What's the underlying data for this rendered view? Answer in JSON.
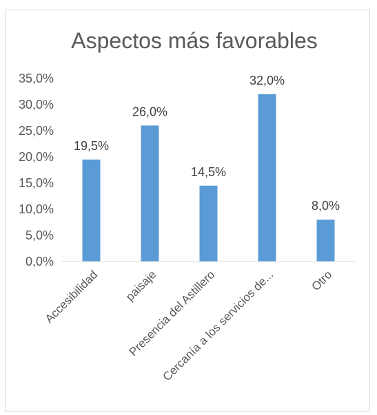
{
  "chart_data": {
    "type": "bar",
    "title": "Aspectos más favorables",
    "categories": [
      "Accesibilidad",
      "paisaje",
      "Presencia del Astillero",
      "Cercanía a los servicios de...",
      "Otro"
    ],
    "values": [
      19.5,
      26.0,
      14.5,
      32.0,
      8.0
    ],
    "data_labels": [
      "19,5%",
      "26,0%",
      "14,5%",
      "32,0%",
      "8,0%"
    ],
    "y_ticks": [
      "0,0%",
      "5,0%",
      "10,0%",
      "15,0%",
      "20,0%",
      "25,0%",
      "30,0%",
      "35,0%"
    ],
    "ylim": [
      0,
      35
    ],
    "xlabel": "",
    "ylabel": "",
    "grid": false,
    "bar_color": "#5b9bd5",
    "axis_color": "#d9d9d9"
  }
}
